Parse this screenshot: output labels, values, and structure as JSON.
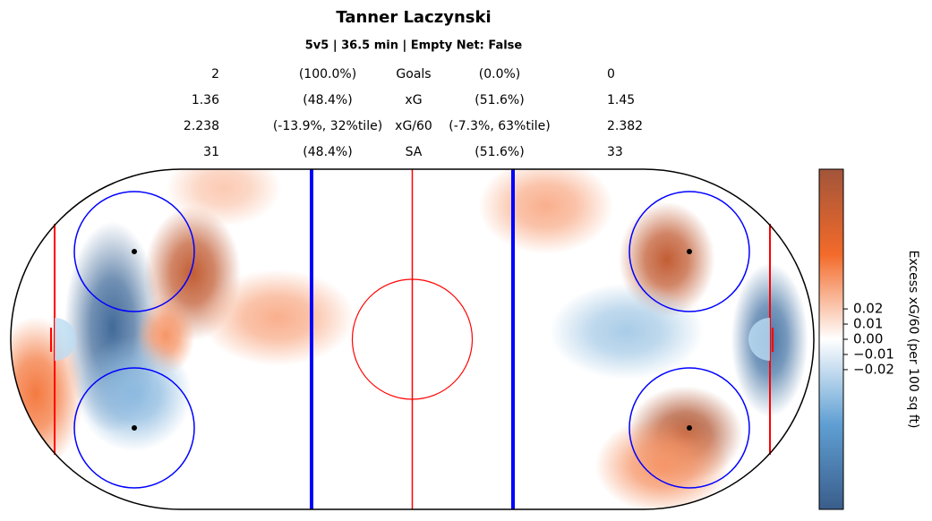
{
  "chart_data": {
    "type": "heatmap",
    "title": "Tanner Laczynski",
    "subtitle": "5v5 | 36.5 min | Empty Net: False",
    "stats": [
      [
        "2",
        "(100.0%)",
        "Goals",
        "(0.0%)",
        "0"
      ],
      [
        "1.36",
        "(48.4%)",
        "xG",
        "(51.6%)",
        "1.45"
      ],
      [
        "2.238",
        "(-13.9%, 32%tile)",
        "xG/60",
        "(-7.3%, 63%tile)",
        "2.382"
      ],
      [
        "31",
        "(48.4%)",
        "SA",
        "(51.6%)",
        "33"
      ]
    ],
    "xlim": [
      -100,
      100
    ],
    "ylim": [
      -42.5,
      42.5
    ],
    "hotspots": [
      {
        "x": -74.7,
        "y": 3,
        "value": -0.1,
        "sx": 5,
        "sy": 11
      },
      {
        "x": -54.7,
        "y": 16.5,
        "value": 0.09,
        "sx": 5,
        "sy": 7
      },
      {
        "x": -33.5,
        "y": 5.4,
        "value": 0.03,
        "sx": 8,
        "sy": 5
      },
      {
        "x": -61.4,
        "y": 0.9,
        "value": 0.04,
        "sx": 3,
        "sy": 4
      },
      {
        "x": -93.8,
        "y": -13.6,
        "value": 0.05,
        "sx": 5,
        "sy": 8
      },
      {
        "x": -69.3,
        "y": -13.6,
        "value": -0.04,
        "sx": 6,
        "sy": 6
      },
      {
        "x": -47,
        "y": 37.8,
        "value": 0.02,
        "sx": 6,
        "sy": 4
      },
      {
        "x": 63.4,
        "y": 19.9,
        "value": 0.09,
        "sx": 5,
        "sy": 6
      },
      {
        "x": 67.9,
        "y": -23.7,
        "value": 0.1,
        "sx": 6,
        "sy": 5
      },
      {
        "x": 89,
        "y": -0.2,
        "value": -0.09,
        "sx": 4,
        "sy": 8
      },
      {
        "x": 33.3,
        "y": 33.3,
        "value": 0.03,
        "sx": 7,
        "sy": 5
      },
      {
        "x": 53.4,
        "y": 2,
        "value": -0.03,
        "sx": 8,
        "sy": 5
      },
      {
        "x": 62.3,
        "y": -31.5,
        "value": 0.04,
        "sx": 7,
        "sy": 5
      }
    ],
    "clim": [
      -0.112,
      0.112
    ],
    "cticks": [
      0.02,
      0.01,
      {
        "value": 0,
        "label": "0.00"
      },
      {
        "value": -0.01,
        "label": "−0.01"
      },
      {
        "value": -0.02,
        "label": "−0.02"
      }
    ],
    "cmap": [
      "#3a5d8b",
      "#5f9fd3",
      "#ffffff",
      "#f36a2a",
      "#a2553a"
    ],
    "colorbar_label": "Excess xG/60 (per 100 sq ft)"
  }
}
